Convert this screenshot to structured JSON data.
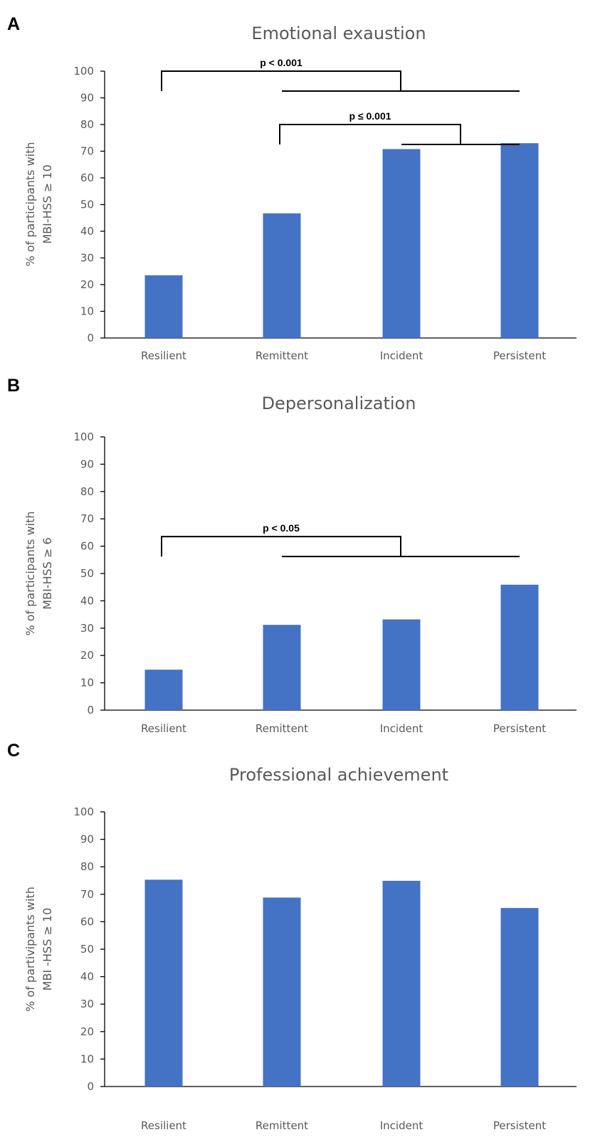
{
  "chart_data": [
    {
      "type": "bar",
      "panel": "A",
      "title": "Emotional exaustion",
      "ylabel_lines": [
        "% of participants with",
        "MBI-HSS ≥ 10"
      ],
      "xlabel": "",
      "categories": [
        "Resilient",
        "Remittent",
        "Incident",
        "Persistent"
      ],
      "values": [
        23.5,
        46.7,
        70.8,
        73.0
      ],
      "ylim": [
        0,
        100
      ],
      "yticks": [
        0,
        10,
        20,
        30,
        40,
        50,
        60,
        70,
        80,
        90,
        100
      ],
      "color": "#4472c4",
      "grid": false,
      "annotations": [
        {
          "label": "p < 0.001",
          "from_category": 0,
          "to_categories": [
            1,
            3
          ],
          "level": 100
        },
        {
          "label": "p ≤ 0.001",
          "from_category": 1,
          "to_categories": [
            2,
            3
          ],
          "level": 80
        }
      ]
    },
    {
      "type": "bar",
      "panel": "B",
      "title": "Depersonalization",
      "ylabel_lines": [
        "% of participants with",
        "MBI-HSS ≥ 6"
      ],
      "xlabel": "",
      "categories": [
        "Resilient",
        "Remittent",
        "Incident",
        "Persistent"
      ],
      "values": [
        14.8,
        31.2,
        33.2,
        45.9
      ],
      "ylim": [
        0,
        100
      ],
      "yticks": [
        0,
        10,
        20,
        30,
        40,
        50,
        60,
        70,
        80,
        90,
        100
      ],
      "color": "#4472c4",
      "grid": false,
      "annotations": [
        {
          "label": "p < 0.05",
          "from_category": 0,
          "to_categories": [
            1,
            3
          ],
          "level": 63.5
        }
      ]
    },
    {
      "type": "bar",
      "panel": "C",
      "title": "Professional achievement",
      "ylabel_lines": [
        "% of partivipants with",
        "MBI -HSS ≥ 10"
      ],
      "xlabel": "",
      "categories": [
        "Resilient",
        "Remittent",
        "Incident",
        "Persistent"
      ],
      "values": [
        75.3,
        68.8,
        74.9,
        65.0
      ],
      "ylim": [
        0,
        100
      ],
      "yticks": [
        0,
        10,
        20,
        30,
        40,
        50,
        60,
        70,
        80,
        90,
        100
      ],
      "color": "#4472c4",
      "grid": false,
      "annotations": []
    }
  ]
}
